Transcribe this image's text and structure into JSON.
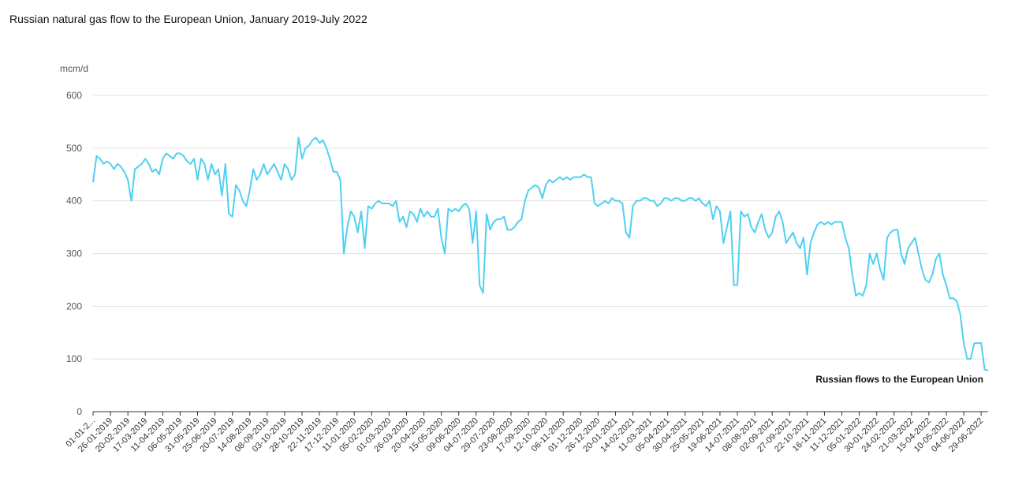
{
  "chart_data": {
    "type": "line",
    "title": "Russian natural gas flow to the European Union, January 2019-July 2022",
    "y_axis_label": "mcm/d",
    "annotation": "Russian flows to the European Union",
    "ylim": [
      0,
      600
    ],
    "yticks": [
      0,
      100,
      200,
      300,
      400,
      500,
      600
    ],
    "grid": true,
    "categories": [
      "01-01-2...",
      null,
      null,
      null,
      null,
      "26-01-2019",
      null,
      null,
      null,
      null,
      "20-02-2019",
      null,
      null,
      null,
      null,
      "17-03-2019",
      null,
      null,
      null,
      null,
      "11-04-2019",
      null,
      null,
      null,
      null,
      "06-05-2019",
      null,
      null,
      null,
      null,
      "31-05-2019",
      null,
      null,
      null,
      null,
      "25-06-2019",
      null,
      null,
      null,
      null,
      "20-07-2019",
      null,
      null,
      null,
      null,
      "14-08-2019",
      null,
      null,
      null,
      null,
      "08-09-2019",
      null,
      null,
      null,
      null,
      "03-10-2019",
      null,
      null,
      null,
      null,
      "28-10-2019",
      null,
      null,
      null,
      null,
      "22-11-2019",
      null,
      null,
      null,
      null,
      "17-12-2019",
      null,
      null,
      null,
      null,
      "11-01-2020",
      null,
      null,
      null,
      null,
      "05-02-2020",
      null,
      null,
      null,
      null,
      "01-03-2020",
      null,
      null,
      null,
      null,
      "26-03-2020",
      null,
      null,
      null,
      null,
      "20-04-2020",
      null,
      null,
      null,
      null,
      "15-05-2020",
      null,
      null,
      null,
      null,
      "09-06-2020",
      null,
      null,
      null,
      null,
      "04-07-2020",
      null,
      null,
      null,
      null,
      "29-07-2020",
      null,
      null,
      null,
      null,
      "23-08-2020",
      null,
      null,
      null,
      null,
      "17-09-2020",
      null,
      null,
      null,
      null,
      "12-10-2020",
      null,
      null,
      null,
      null,
      "06-11-2020",
      null,
      null,
      null,
      null,
      "01-12-2020",
      null,
      null,
      null,
      null,
      "26-12-2020",
      null,
      null,
      null,
      null,
      "20-01-2021",
      null,
      null,
      null,
      null,
      "14-02-2021",
      null,
      null,
      null,
      null,
      "11-03-2021",
      null,
      null,
      null,
      null,
      "05-04-2021",
      null,
      null,
      null,
      null,
      "30-04-2021",
      null,
      null,
      null,
      null,
      "25-05-2021",
      null,
      null,
      null,
      null,
      "19-06-2021",
      null,
      null,
      null,
      null,
      "14-07-2021",
      null,
      null,
      null,
      null,
      "08-08-2021",
      null,
      null,
      null,
      null,
      "02-09-2021",
      null,
      null,
      null,
      null,
      "27-09-2021",
      null,
      null,
      null,
      null,
      "22-10-2021",
      null,
      null,
      null,
      null,
      "16-11-2021",
      null,
      null,
      null,
      null,
      "11-12-2021",
      null,
      null,
      null,
      null,
      "05-01-2022",
      null,
      null,
      null,
      null,
      "30-01-2022",
      null,
      null,
      null,
      null,
      "24-02-2022",
      null,
      null,
      null,
      null,
      "21-03-2022",
      null,
      null,
      null,
      null,
      "15-04-2022",
      null,
      null,
      null,
      null,
      "10-05-2022",
      null,
      null,
      null,
      null,
      "04-06-2022",
      null,
      null,
      null,
      null,
      "29-06-2022",
      null,
      null
    ],
    "series": [
      {
        "name": "Russian flows to the European Union",
        "color": "#4fd0f2",
        "values": [
          435,
          485,
          480,
          470,
          475,
          470,
          460,
          470,
          465,
          455,
          440,
          400,
          460,
          465,
          470,
          480,
          470,
          455,
          460,
          450,
          480,
          490,
          485,
          480,
          490,
          490,
          485,
          475,
          470,
          480,
          440,
          480,
          470,
          440,
          470,
          450,
          460,
          410,
          470,
          375,
          370,
          430,
          420,
          400,
          390,
          420,
          460,
          440,
          450,
          470,
          450,
          460,
          470,
          455,
          440,
          470,
          460,
          440,
          450,
          520,
          480,
          500,
          505,
          515,
          520,
          510,
          515,
          500,
          480,
          455,
          455,
          440,
          300,
          350,
          380,
          370,
          340,
          380,
          310,
          390,
          385,
          395,
          400,
          395,
          395,
          395,
          390,
          400,
          360,
          370,
          350,
          380,
          375,
          360,
          385,
          370,
          380,
          370,
          370,
          385,
          330,
          300,
          385,
          380,
          385,
          380,
          390,
          395,
          385,
          320,
          380,
          240,
          225,
          375,
          345,
          360,
          365,
          365,
          370,
          345,
          345,
          350,
          360,
          365,
          400,
          420,
          425,
          430,
          425,
          405,
          430,
          440,
          435,
          440,
          445,
          440,
          445,
          440,
          445,
          445,
          445,
          450,
          445,
          445,
          395,
          390,
          395,
          400,
          395,
          405,
          400,
          400,
          395,
          340,
          330,
          390,
          400,
          400,
          405,
          405,
          400,
          400,
          390,
          395,
          405,
          405,
          400,
          405,
          405,
          400,
          400,
          405,
          405,
          400,
          405,
          395,
          390,
          400,
          365,
          390,
          380,
          320,
          350,
          380,
          240,
          240,
          380,
          370,
          375,
          350,
          340,
          360,
          375,
          345,
          330,
          340,
          370,
          380,
          360,
          320,
          330,
          340,
          320,
          310,
          330,
          260,
          320,
          340,
          355,
          360,
          355,
          360,
          355,
          360,
          360,
          360,
          330,
          310,
          260,
          220,
          225,
          220,
          240,
          300,
          280,
          300,
          270,
          250,
          330,
          340,
          345,
          345,
          300,
          280,
          310,
          320,
          330,
          300,
          270,
          250,
          245,
          260,
          290,
          300,
          260,
          240,
          215,
          215,
          210,
          185,
          130,
          100,
          100,
          130,
          130,
          130,
          80,
          78
        ]
      }
    ]
  }
}
